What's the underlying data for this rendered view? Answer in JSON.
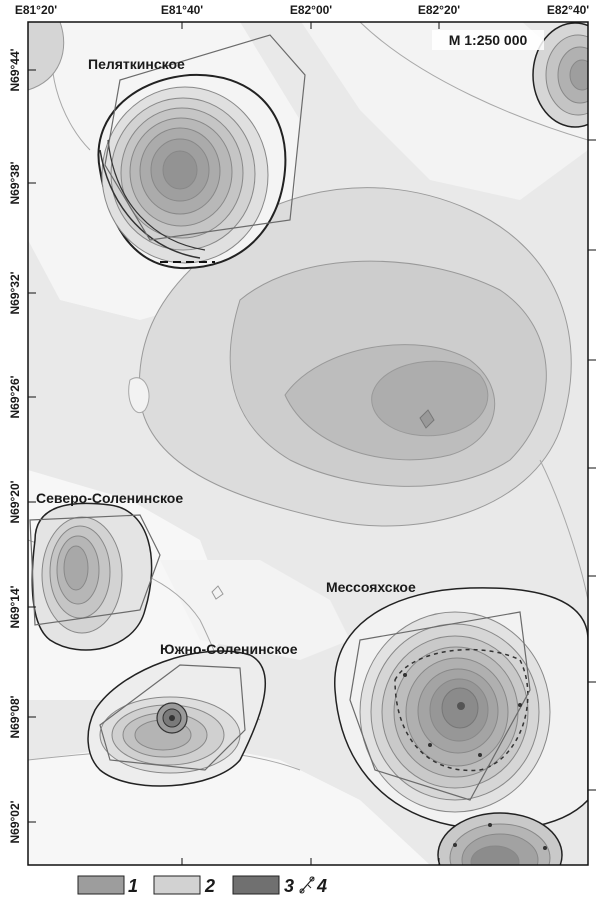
{
  "map": {
    "scale": "M 1:250 000",
    "longitude_labels": [
      "E81°20'",
      "E81°40'",
      "E82°00'",
      "E82°20'",
      "E82°40'"
    ],
    "latitude_labels": [
      "N69°44'",
      "N69°38'",
      "N69°32'",
      "N69°26'",
      "N69°20'",
      "N69°14'",
      "N69°08'",
      "N69°02'"
    ],
    "fields": {
      "pelyatkinskoe": "Пеляткинское",
      "severo_soleninskoe": "Северо-Соленинское",
      "messoyakhskoe": "Мессояхское",
      "yuzhno_soleninskoe": "Южно-Соленинское"
    },
    "legend": [
      {
        "number": "1",
        "fill": "#9d9d9d"
      },
      {
        "number": "2",
        "fill": "#d2d2d2"
      },
      {
        "number": "3",
        "fill": "#707070"
      },
      {
        "number": "4",
        "icon": "well-symbol"
      }
    ]
  }
}
